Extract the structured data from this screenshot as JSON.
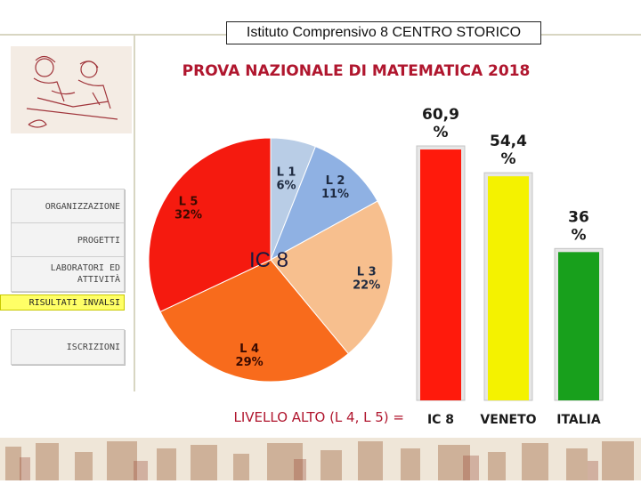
{
  "header": {
    "school_name": "Istituto Comprensivo 8 CENTRO STORICO"
  },
  "title": "PROVA NAZIONALE DI MATEMATICA 2018",
  "nav": {
    "items": [
      "ORGANIZZAZIONE",
      "PROGETTI",
      "LABORATORI ED ATTIVITÀ",
      "ISCRIZIONI"
    ],
    "active": "RISULTATI INVALSI"
  },
  "colors": {
    "title": "#b0162e",
    "active_nav": "#ffff66"
  },
  "chart_data": [
    {
      "type": "pie",
      "center_label": "IC 8",
      "slices": [
        {
          "label": "L 1",
          "value": 6,
          "display": "6%",
          "color": "#b9cde6"
        },
        {
          "label": "L 2",
          "value": 11,
          "display": "11%",
          "color": "#8fb1e3"
        },
        {
          "label": "L 3",
          "value": 22,
          "display": "22%",
          "color": "#f7bf8e"
        },
        {
          "label": "L 4",
          "value": 29,
          "display": "29%",
          "color": "#f86b1c"
        },
        {
          "label": "L 5",
          "value": 32,
          "display": "32%",
          "color": "#f51a0f"
        }
      ]
    },
    {
      "type": "bar",
      "caption": "LIVELLO ALTO (L 4, L 5) =",
      "categories": [
        "IC 8",
        "VENETO",
        "ITALIA"
      ],
      "values": [
        60.9,
        54.4,
        36
      ],
      "value_labels": [
        [
          "60,9",
          "%"
        ],
        [
          "54,4",
          "%"
        ],
        [
          "36",
          "%"
        ]
      ],
      "colors": [
        "#ff1a0c",
        "#f4f200",
        "#18a01c"
      ]
    }
  ]
}
